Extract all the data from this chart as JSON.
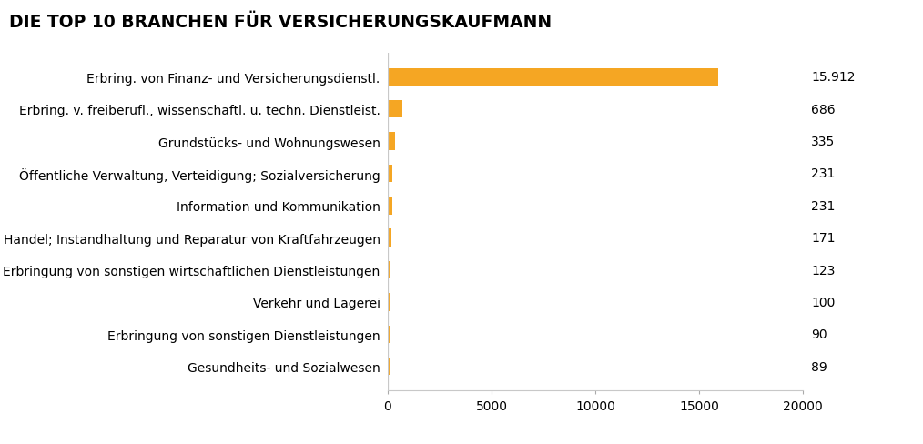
{
  "title": "DIE TOP 10 BRANCHEN FÜR VERSICHERUNGSKAUFMANN",
  "categories": [
    "Gesundheits- und Sozialwesen",
    "Erbringung von sonstigen Dienstleistungen",
    "Verkehr und Lagerei",
    "Erbringung von sonstigen wirtschaftlichen Dienstleistungen",
    "Handel; Instandhaltung und Reparatur von Kraftfahrzeugen",
    "Information und Kommunikation",
    "Öffentliche Verwaltung, Verteidigung; Sozialversicherung",
    "Grundstücks- und Wohnungswesen",
    "Erbring. v. freiberufl., wissenschaftl. u. techn. Dienstleist.",
    "Erbring. von Finanz- und Versicherungsdienstl."
  ],
  "values": [
    89,
    90,
    100,
    123,
    171,
    231,
    231,
    335,
    686,
    15912
  ],
  "bar_color": "#F5A623",
  "value_labels": [
    "89",
    "90",
    "100",
    "123",
    "171",
    "231",
    "231",
    "335",
    "686",
    "15.912"
  ],
  "xlim": [
    0,
    20000
  ],
  "xticks": [
    0,
    5000,
    10000,
    15000,
    20000
  ],
  "xtick_labels": [
    "0",
    "5000",
    "10000",
    "15000",
    "20000"
  ],
  "background_color": "#ffffff",
  "title_fontsize": 13.5,
  "label_fontsize": 10,
  "value_fontsize": 10,
  "tick_fontsize": 10
}
